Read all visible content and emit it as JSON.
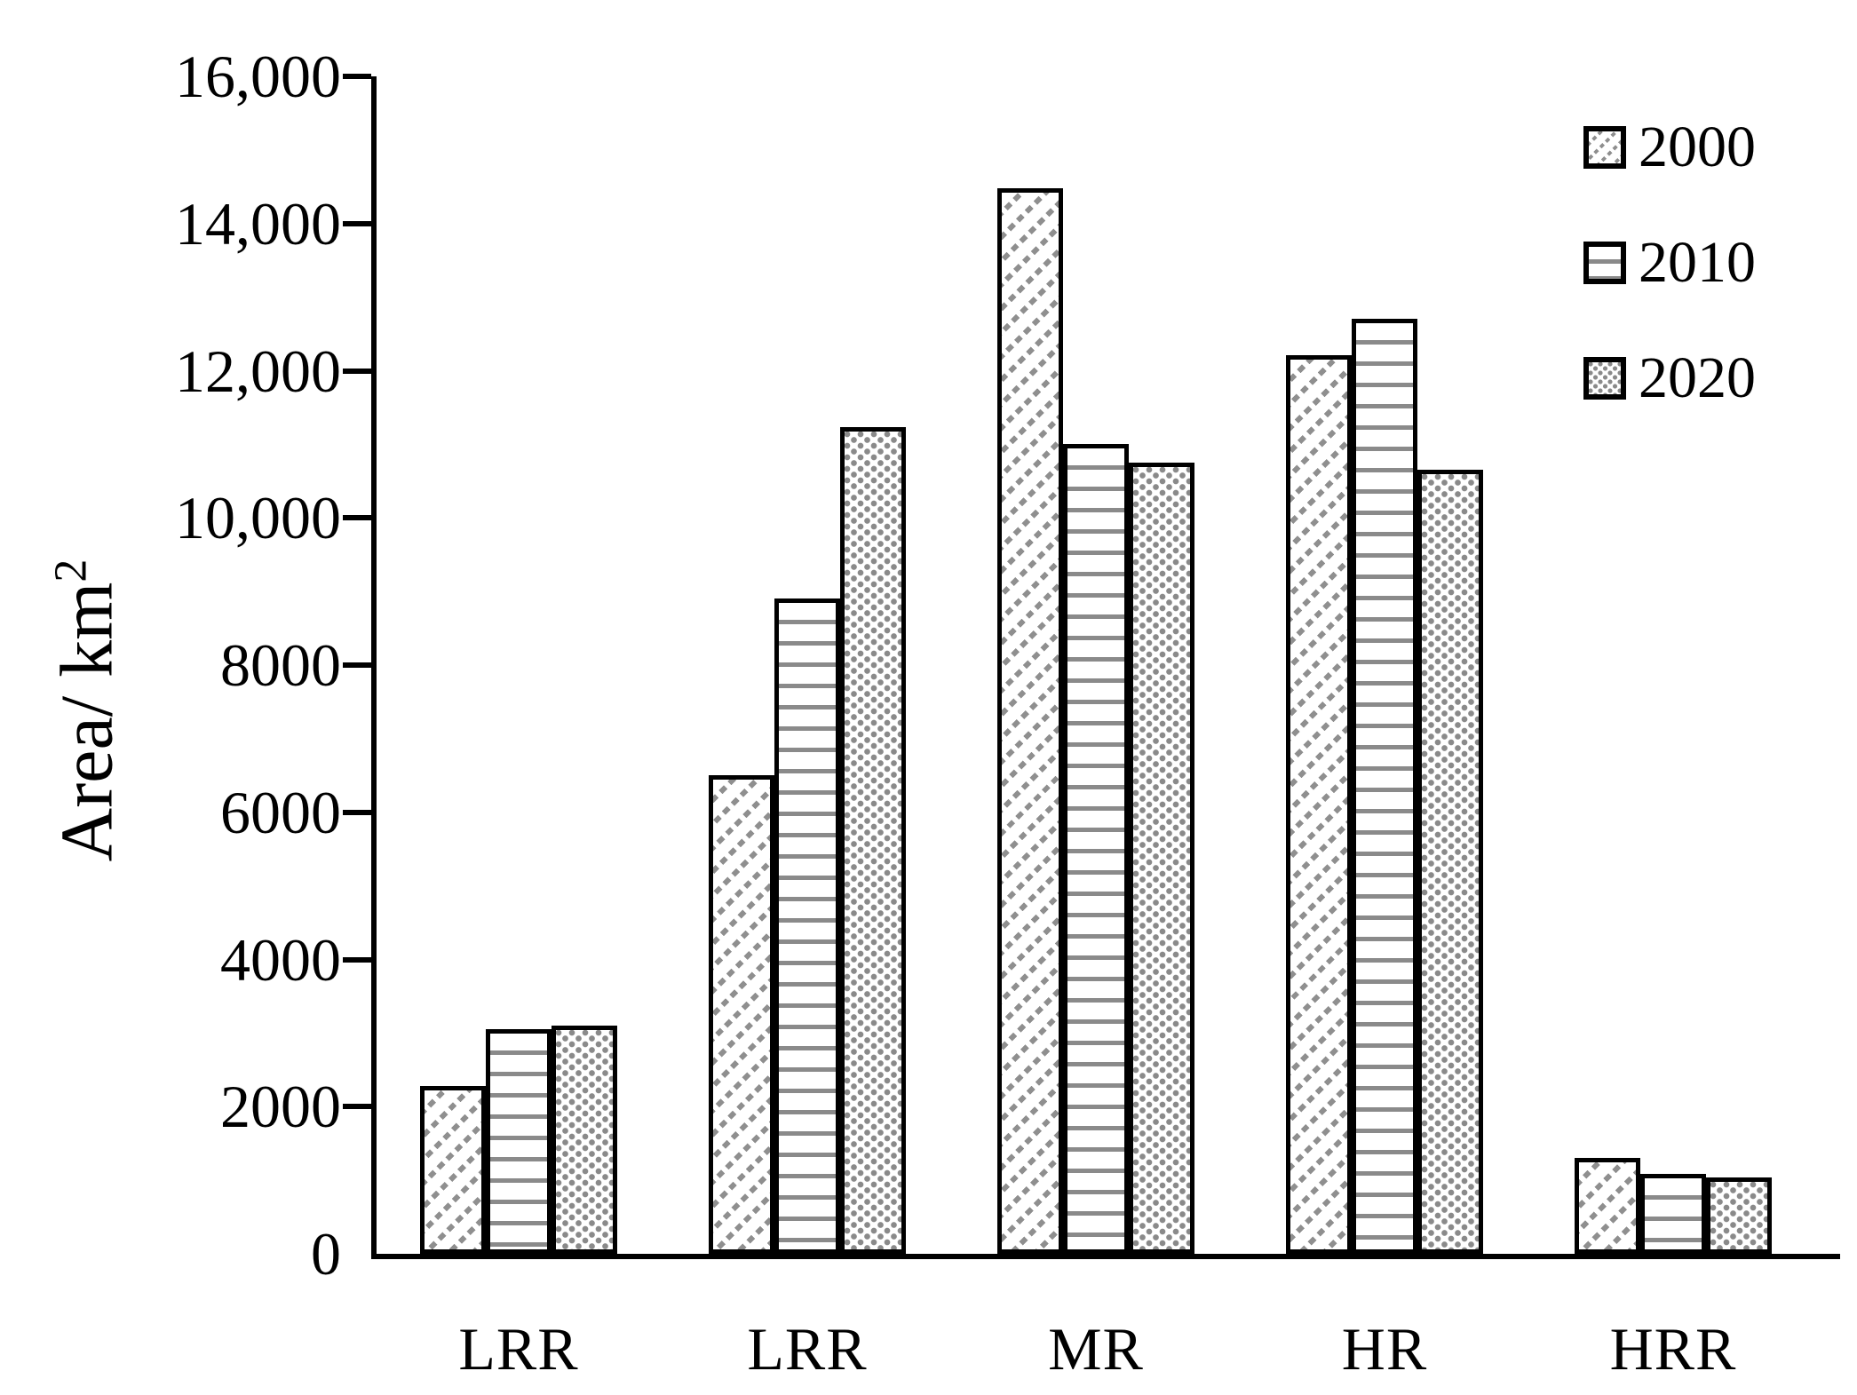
{
  "figure": {
    "background": "#ffffff",
    "axis_color": "#000000",
    "pattern_gray": "#8f8f8f",
    "bar_border_color": "#000000"
  },
  "chart_data": {
    "type": "bar",
    "title": "",
    "xlabel": "",
    "ylabel": "Area/ km²",
    "ylabel_main": "Area/ km",
    "ylabel_sup": "2",
    "categories": [
      "LRR",
      "LRR",
      "MR",
      "HR",
      "HRR"
    ],
    "series": [
      {
        "name": "2000",
        "pattern": "diagonal-hatch",
        "values": [
          2280,
          6500,
          14480,
          12210,
          1300
        ]
      },
      {
        "name": "2010",
        "pattern": "horizontal-lines",
        "values": [
          3050,
          8900,
          11000,
          12700,
          1090
        ]
      },
      {
        "name": "2020",
        "pattern": "dots",
        "values": [
          3100,
          11230,
          10750,
          10650,
          1040
        ]
      }
    ],
    "ylim": [
      0,
      16000
    ],
    "y_tick_interval": 2000,
    "y_tick_labels": [
      "0",
      "2000",
      "4000",
      "6000",
      "8000",
      "10,000",
      "12,000",
      "14,000",
      "16,000"
    ],
    "grid": false,
    "legend_position": "upper right"
  }
}
